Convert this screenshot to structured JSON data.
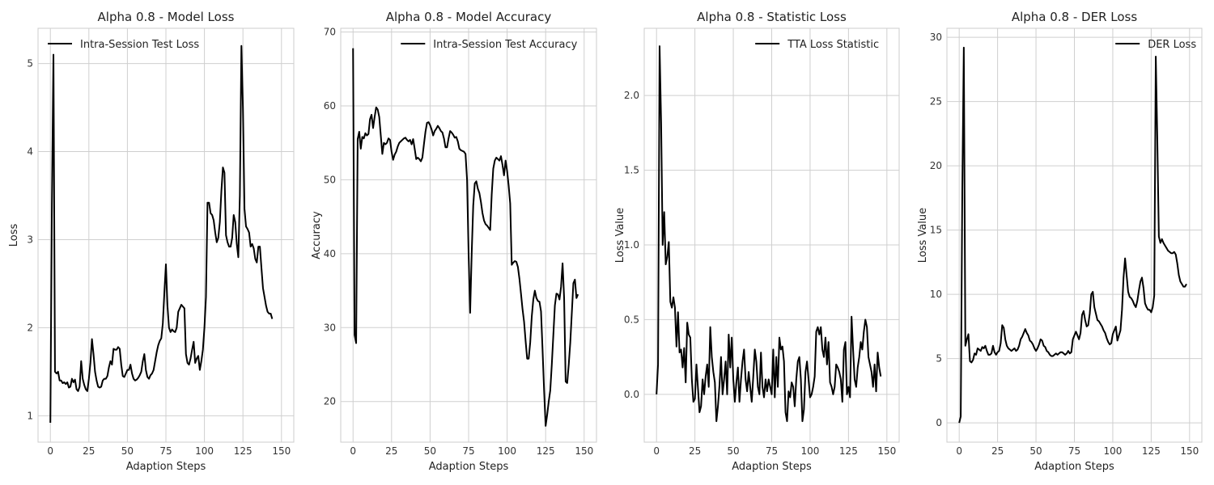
{
  "chart_data": [
    {
      "type": "line",
      "title": "Alpha 0.8 - Model Loss",
      "xlabel": "Adaption Steps",
      "ylabel": "Loss",
      "xlim": [
        -8,
        158
      ],
      "ylim": [
        0.7,
        5.4
      ],
      "xticks": [
        0,
        25,
        50,
        75,
        100,
        125,
        150
      ],
      "yticks": [
        1,
        2,
        3,
        4,
        5
      ],
      "grid": true,
      "legend_position": "top-left",
      "series": [
        {
          "name": "Intra-Session Test Loss",
          "x_start": 0,
          "x_step": 1,
          "y": [
            0.92,
            3.4,
            5.1,
            1.5,
            1.48,
            1.5,
            1.4,
            1.4,
            1.37,
            1.38,
            1.36,
            1.38,
            1.32,
            1.33,
            1.42,
            1.38,
            1.41,
            1.3,
            1.28,
            1.33,
            1.62,
            1.42,
            1.35,
            1.3,
            1.28,
            1.42,
            1.6,
            1.87,
            1.7,
            1.5,
            1.4,
            1.33,
            1.32,
            1.33,
            1.4,
            1.42,
            1.42,
            1.45,
            1.55,
            1.62,
            1.58,
            1.76,
            1.75,
            1.75,
            1.78,
            1.76,
            1.58,
            1.45,
            1.44,
            1.48,
            1.52,
            1.52,
            1.58,
            1.48,
            1.42,
            1.4,
            1.41,
            1.43,
            1.46,
            1.5,
            1.62,
            1.7,
            1.52,
            1.44,
            1.42,
            1.46,
            1.48,
            1.52,
            1.62,
            1.72,
            1.8,
            1.85,
            1.88,
            2.05,
            2.4,
            2.72,
            2.25,
            2.0,
            1.95,
            1.98,
            1.96,
            1.95,
            2.0,
            2.18,
            2.22,
            2.26,
            2.24,
            2.22,
            1.7,
            1.6,
            1.58,
            1.65,
            1.75,
            1.84,
            1.6,
            1.65,
            1.68,
            1.52,
            1.62,
            1.75,
            2.0,
            2.35,
            3.42,
            3.42,
            3.3,
            3.28,
            3.22,
            3.08,
            2.97,
            3.02,
            3.2,
            3.55,
            3.82,
            3.76,
            3.05,
            2.97,
            2.92,
            2.92,
            3.02,
            3.28,
            3.2,
            2.95,
            2.8,
            3.5,
            5.2,
            4.5,
            3.35,
            3.15,
            3.12,
            3.08,
            2.92,
            2.95,
            2.9,
            2.78,
            2.74,
            2.92,
            2.92,
            2.68,
            2.45,
            2.35,
            2.25,
            2.18,
            2.16,
            2.16,
            2.1
          ]
        }
      ]
    },
    {
      "type": "line",
      "title": "Alpha 0.8 - Model Accuracy",
      "xlabel": "Adaption Steps",
      "ylabel": "Accuracy",
      "xlim": [
        -8,
        158
      ],
      "ylim": [
        14.5,
        70.5
      ],
      "xticks": [
        0,
        25,
        50,
        75,
        100,
        125,
        150
      ],
      "yticks": [
        20,
        30,
        40,
        50,
        60,
        70
      ],
      "grid": true,
      "legend_position": "top-right",
      "series": [
        {
          "name": "Intra-Session Test Accuracy",
          "x_start": 0,
          "x_step": 1,
          "y": [
            67.8,
            29.0,
            27.9,
            55.5,
            56.5,
            54.2,
            55.8,
            55.6,
            56.3,
            56.0,
            56.2,
            58.2,
            58.8,
            57.0,
            58.5,
            59.8,
            59.5,
            58.5,
            56.0,
            53.5,
            55.0,
            54.8,
            55.0,
            55.6,
            55.4,
            53.8,
            52.7,
            53.4,
            53.8,
            54.5,
            55.0,
            55.2,
            55.4,
            55.6,
            55.7,
            55.4,
            55.2,
            55.4,
            54.8,
            55.5,
            54.2,
            52.8,
            53.0,
            52.8,
            52.5,
            53.0,
            54.8,
            56.5,
            57.7,
            57.8,
            57.4,
            56.8,
            56.0,
            56.6,
            56.9,
            57.3,
            57.0,
            56.6,
            56.4,
            55.6,
            54.4,
            54.4,
            55.6,
            56.6,
            56.4,
            56.1,
            55.7,
            55.8,
            55.2,
            54.2,
            54.0,
            53.9,
            53.8,
            53.5,
            50.0,
            40.0,
            32.0,
            40.0,
            46.5,
            49.5,
            49.8,
            48.8,
            48.2,
            47.0,
            45.5,
            44.5,
            44.0,
            43.8,
            43.5,
            43.2,
            48.0,
            51.5,
            52.6,
            53.0,
            52.8,
            52.6,
            53.2,
            52.0,
            50.6,
            52.6,
            51.2,
            49.2,
            46.8,
            38.5,
            38.8,
            39.0,
            38.9,
            38.2,
            36.6,
            34.6,
            32.5,
            30.8,
            28.2,
            25.8,
            25.8,
            28.0,
            31.5,
            33.8,
            35.0,
            34.0,
            33.6,
            33.5,
            32.2,
            27.0,
            21.5,
            16.7,
            18.2,
            20.0,
            21.5,
            25.0,
            29.0,
            33.0,
            34.6,
            34.5,
            33.8,
            35.5,
            38.7,
            34.0,
            22.7,
            22.5,
            25.0,
            28.0,
            32.0,
            36.0,
            36.5,
            34.0,
            34.5
          ]
        }
      ]
    },
    {
      "type": "line",
      "title": "Alpha 0.8 - Statistic Loss",
      "xlabel": "Adaption Steps",
      "ylabel": "Loss Value",
      "xlim": [
        -8,
        158
      ],
      "ylim": [
        -0.32,
        2.45
      ],
      "xticks": [
        0,
        25,
        50,
        75,
        100,
        125,
        150
      ],
      "yticks": [
        0.0,
        0.5,
        1.0,
        1.5,
        2.0
      ],
      "grid": true,
      "legend_position": "top-right",
      "series": [
        {
          "name": "TTA Loss Statistic",
          "x_start": 0,
          "x_step": 1,
          "y": [
            0.0,
            0.2,
            2.33,
            1.82,
            1.0,
            1.22,
            0.87,
            0.92,
            1.02,
            0.62,
            0.58,
            0.65,
            0.58,
            0.32,
            0.55,
            0.28,
            0.3,
            0.18,
            0.31,
            0.08,
            0.48,
            0.4,
            0.38,
            0.1,
            -0.05,
            -0.03,
            0.2,
            0.04,
            -0.12,
            -0.08,
            0.1,
            0.0,
            0.12,
            0.2,
            0.05,
            0.45,
            0.25,
            0.15,
            0.08,
            -0.18,
            -0.08,
            0.06,
            0.25,
            0.0,
            0.1,
            0.22,
            0.0,
            0.4,
            0.18,
            0.38,
            0.1,
            -0.05,
            0.08,
            0.18,
            -0.05,
            0.1,
            0.22,
            0.3,
            0.1,
            0.02,
            0.15,
            0.05,
            -0.05,
            0.12,
            0.3,
            0.22,
            0.05,
            0.0,
            0.28,
            0.05,
            -0.02,
            0.1,
            0.02,
            0.1,
            0.05,
            0.0,
            0.3,
            -0.02,
            0.25,
            0.05,
            0.38,
            0.3,
            0.32,
            0.22,
            -0.12,
            -0.18,
            0.02,
            -0.02,
            0.08,
            0.05,
            -0.08,
            0.1,
            0.22,
            0.25,
            0.1,
            -0.18,
            -0.1,
            0.15,
            0.22,
            0.1,
            -0.02,
            0.0,
            0.05,
            0.12,
            0.42,
            0.45,
            0.4,
            0.45,
            0.3,
            0.25,
            0.38,
            0.2,
            0.35,
            0.08,
            0.05,
            0.0,
            0.05,
            0.2,
            0.18,
            0.15,
            0.1,
            -0.05,
            0.3,
            0.35,
            0.0,
            0.05,
            -0.02,
            0.52,
            0.3,
            0.1,
            0.05,
            0.18,
            0.25,
            0.35,
            0.3,
            0.42,
            0.5,
            0.45,
            0.25,
            0.2,
            0.15,
            0.05,
            0.2,
            0.02,
            0.28,
            0.18,
            0.12
          ]
        }
      ]
    },
    {
      "type": "line",
      "title": "Alpha 0.8 - DER Loss",
      "xlabel": "Adaption Steps",
      "ylabel": "Loss Value",
      "xlim": [
        -8,
        158
      ],
      "ylim": [
        -1.5,
        30.7
      ],
      "xticks": [
        0,
        25,
        50,
        75,
        100,
        125,
        150
      ],
      "yticks": [
        0,
        5,
        10,
        15,
        20,
        25,
        30
      ],
      "grid": true,
      "legend_position": "top-right",
      "series": [
        {
          "name": "DER Loss",
          "x_start": 0,
          "x_step": 1,
          "y": [
            0.0,
            0.5,
            18.0,
            29.2,
            6.0,
            6.5,
            6.9,
            4.8,
            4.7,
            4.9,
            5.4,
            5.3,
            5.8,
            5.7,
            5.6,
            5.9,
            5.8,
            6.0,
            5.6,
            5.3,
            5.3,
            5.4,
            6.0,
            5.5,
            5.3,
            5.5,
            5.6,
            6.2,
            7.6,
            7.4,
            6.5,
            6.0,
            5.8,
            5.7,
            5.6,
            5.7,
            5.8,
            5.6,
            5.7,
            6.0,
            6.5,
            6.7,
            7.0,
            7.3,
            7.0,
            6.8,
            6.4,
            6.3,
            6.1,
            5.8,
            5.6,
            5.8,
            6.1,
            6.5,
            6.4,
            6.0,
            5.9,
            5.6,
            5.5,
            5.3,
            5.2,
            5.2,
            5.3,
            5.4,
            5.3,
            5.4,
            5.5,
            5.5,
            5.4,
            5.3,
            5.4,
            5.6,
            5.4,
            5.5,
            6.5,
            6.8,
            7.1,
            6.8,
            6.5,
            7.0,
            8.4,
            8.7,
            8.0,
            7.5,
            7.6,
            8.5,
            10.0,
            10.2,
            9.0,
            8.5,
            8.0,
            7.9,
            7.7,
            7.5,
            7.2,
            7.0,
            6.6,
            6.3,
            6.1,
            6.2,
            6.9,
            7.2,
            7.5,
            6.4,
            6.8,
            7.2,
            8.8,
            11.3,
            12.8,
            11.5,
            10.2,
            9.8,
            9.7,
            9.5,
            9.2,
            9.0,
            9.5,
            10.3,
            11.0,
            11.3,
            10.5,
            9.3,
            9.0,
            8.8,
            8.8,
            8.6,
            9.0,
            9.9,
            28.5,
            22.0,
            14.5,
            14.0,
            14.3,
            14.0,
            13.8,
            13.6,
            13.4,
            13.3,
            13.2,
            13.2,
            13.3,
            13.1,
            12.4,
            11.5,
            11.0,
            10.8,
            10.6,
            10.6,
            10.8
          ]
        }
      ]
    }
  ]
}
